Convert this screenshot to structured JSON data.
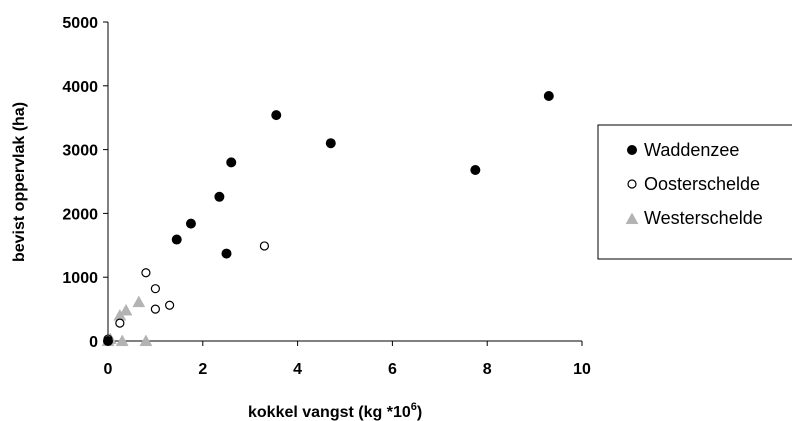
{
  "chart_data": {
    "type": "scatter",
    "xlabel": "kokkel vangst (kg *10",
    "xlabel_sup": "6",
    "xlabel_end": ")",
    "ylabel": "bevist oppervlak (ha)",
    "xlim": [
      0,
      10
    ],
    "ylim": [
      0,
      5000
    ],
    "x_ticks": [
      "0",
      "2",
      "4",
      "6",
      "8",
      "10"
    ],
    "y_ticks": [
      "0",
      "1000",
      "2000",
      "3000",
      "4000",
      "5000"
    ],
    "grid": false,
    "legend_position": "right",
    "series": [
      {
        "name": "Waddenzee",
        "marker": "filled-circle",
        "color": "#000000",
        "points": [
          [
            1.45,
            1590
          ],
          [
            1.75,
            1840
          ],
          [
            2.35,
            2260
          ],
          [
            2.5,
            1370
          ],
          [
            2.6,
            2800
          ],
          [
            3.55,
            3540
          ],
          [
            4.7,
            3100
          ],
          [
            7.75,
            2680
          ],
          [
            9.3,
            3840
          ],
          [
            0.0,
            0
          ]
        ]
      },
      {
        "name": "Oosterschelde",
        "marker": "open-circle",
        "color": "#000000",
        "points": [
          [
            0.0,
            30
          ],
          [
            0.25,
            280
          ],
          [
            0.8,
            1070
          ],
          [
            1.0,
            820
          ],
          [
            1.0,
            500
          ],
          [
            1.3,
            560
          ],
          [
            3.3,
            1490
          ]
        ]
      },
      {
        "name": "Westerschelde",
        "marker": "triangle",
        "color": "#b3b3b3",
        "points": [
          [
            0.0,
            0
          ],
          [
            0.05,
            30
          ],
          [
            0.25,
            400
          ],
          [
            0.38,
            480
          ],
          [
            0.65,
            610
          ],
          [
            0.3,
            0
          ],
          [
            0.8,
            0
          ]
        ]
      }
    ]
  }
}
